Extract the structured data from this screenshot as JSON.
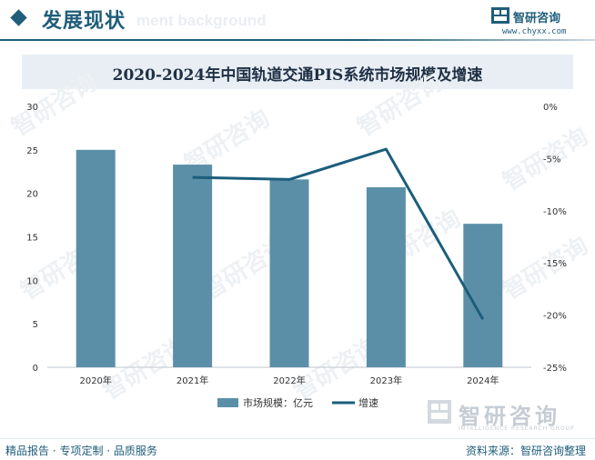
{
  "header": {
    "section_title": "发展现状",
    "ghost_text": "ment background",
    "brand_name": "智研咨询",
    "brand_url": "www.chyxx.com"
  },
  "watermark": {
    "brand_name": "智研咨询",
    "brand_sub": "INTELLIGENCE RESEARCH GROUP"
  },
  "footer": {
    "left": "精品报告 · 专项定制 · 品质服务",
    "right": "资料来源：智研咨询整理"
  },
  "colors": {
    "bar": "#5b8fa8",
    "line": "#1b5e7b",
    "brand": "#1f5d7a"
  },
  "chart_data": {
    "type": "bar",
    "title": "2020-2024年中国轨道交通PIS系统市场规模及增速",
    "categories": [
      "2020年",
      "2021年",
      "2022年",
      "2023年",
      "2024年"
    ],
    "series": [
      {
        "name": "市场规模：亿元",
        "type": "bar",
        "axis": "left",
        "values": [
          25.0,
          23.3,
          21.6,
          20.7,
          16.5
        ]
      },
      {
        "name": "增速",
        "type": "line",
        "axis": "right",
        "values": [
          null,
          -6.8,
          -7.0,
          -4.1,
          -20.4
        ]
      }
    ],
    "y_left": {
      "min": 0,
      "max": 30,
      "ticks": [
        "0",
        "5",
        "10",
        "15",
        "20",
        "25",
        "30"
      ]
    },
    "y_right": {
      "min": -25,
      "max": 0,
      "ticks": [
        "-25%",
        "-20%",
        "-15%",
        "-10%",
        "-5%",
        "0%"
      ]
    },
    "legend": {
      "position": "bottom",
      "items": [
        "市场规模：亿元",
        "增速"
      ]
    }
  }
}
